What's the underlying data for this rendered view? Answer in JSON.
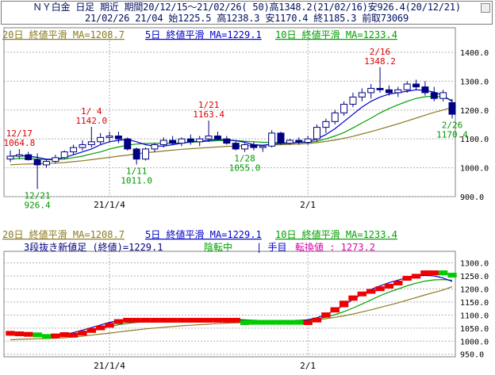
{
  "header": {
    "line1": "ＮＹ白金 日足 期近 期間20/12/15～21/02/26( 50)高1348.2(21/02/16)安926.4(20/12/21)",
    "line2": "21/02/26 21/04 始1225.5 高1238.3 安1170.4 終1185.3 前取73069"
  },
  "colors": {
    "up_body": "#ffffff",
    "down_body": "#000080",
    "candle_outline": "#000080",
    "ma20": "#8a7a20",
    "ma5": "#0000cc",
    "ma10": "#00a000",
    "high_label": "#dd0000",
    "low_label": "#009900",
    "grid": "#b0b0b0",
    "brick_up": "#ee0000",
    "brick_down": "#00cc00"
  },
  "chart_data": [
    {
      "type": "candlestick",
      "legend": [
        "20日 終値平滑 MA=1208.7",
        "5日 終値平滑 MA=1229.1",
        "10日 終値平滑 MA=1233.4"
      ],
      "x_ticks": [
        "21/1/4",
        "2/1"
      ],
      "y_ticks": [
        "1400.0",
        "1300.0",
        "1200.0",
        "1100.0",
        "1000.0",
        "900.0"
      ],
      "ylim": [
        900,
        1430
      ],
      "candles": [
        {
          "o": 1030,
          "h": 1060,
          "l": 1020,
          "c": 1040
        },
        {
          "o": 1040,
          "h": 1064.8,
          "l": 1030,
          "c": 1045
        },
        {
          "o": 1045,
          "h": 1055,
          "l": 1025,
          "c": 1028
        },
        {
          "o": 1028,
          "h": 1050,
          "l": 926.4,
          "c": 1010
        },
        {
          "o": 1010,
          "h": 1030,
          "l": 1000,
          "c": 1022
        },
        {
          "o": 1022,
          "h": 1045,
          "l": 1015,
          "c": 1035
        },
        {
          "o": 1035,
          "h": 1060,
          "l": 1030,
          "c": 1055
        },
        {
          "o": 1055,
          "h": 1080,
          "l": 1045,
          "c": 1070
        },
        {
          "o": 1070,
          "h": 1095,
          "l": 1060,
          "c": 1080
        },
        {
          "o": 1080,
          "h": 1142,
          "l": 1070,
          "c": 1090
        },
        {
          "o": 1090,
          "h": 1120,
          "l": 1080,
          "c": 1105
        },
        {
          "o": 1105,
          "h": 1125,
          "l": 1090,
          "c": 1110
        },
        {
          "o": 1110,
          "h": 1125,
          "l": 1085,
          "c": 1100
        },
        {
          "o": 1100,
          "h": 1105,
          "l": 1060,
          "c": 1065
        },
        {
          "o": 1065,
          "h": 1070,
          "l": 1011,
          "c": 1030
        },
        {
          "o": 1030,
          "h": 1070,
          "l": 1025,
          "c": 1065
        },
        {
          "o": 1065,
          "h": 1085,
          "l": 1055,
          "c": 1080
        },
        {
          "o": 1080,
          "h": 1105,
          "l": 1070,
          "c": 1095
        },
        {
          "o": 1095,
          "h": 1110,
          "l": 1080,
          "c": 1085
        },
        {
          "o": 1085,
          "h": 1105,
          "l": 1075,
          "c": 1100
        },
        {
          "o": 1100,
          "h": 1115,
          "l": 1080,
          "c": 1090
        },
        {
          "o": 1090,
          "h": 1110,
          "l": 1075,
          "c": 1100
        },
        {
          "o": 1100,
          "h": 1163.4,
          "l": 1090,
          "c": 1110
        },
        {
          "o": 1110,
          "h": 1125,
          "l": 1095,
          "c": 1100
        },
        {
          "o": 1100,
          "h": 1110,
          "l": 1080,
          "c": 1085
        },
        {
          "o": 1085,
          "h": 1095,
          "l": 1060,
          "c": 1065
        },
        {
          "o": 1065,
          "h": 1085,
          "l": 1055,
          "c": 1080
        },
        {
          "o": 1080,
          "h": 1090,
          "l": 1060,
          "c": 1070
        },
        {
          "o": 1070,
          "h": 1080,
          "l": 1055,
          "c": 1075
        },
        {
          "o": 1075,
          "h": 1130,
          "l": 1070,
          "c": 1120
        },
        {
          "o": 1120,
          "h": 1125,
          "l": 1080,
          "c": 1085
        },
        {
          "o": 1085,
          "h": 1100,
          "l": 1080,
          "c": 1095
        },
        {
          "o": 1095,
          "h": 1105,
          "l": 1080,
          "c": 1088
        },
        {
          "o": 1088,
          "h": 1110,
          "l": 1080,
          "c": 1100
        },
        {
          "o": 1100,
          "h": 1150,
          "l": 1090,
          "c": 1140
        },
        {
          "o": 1140,
          "h": 1170,
          "l": 1120,
          "c": 1160
        },
        {
          "o": 1160,
          "h": 1200,
          "l": 1150,
          "c": 1190
        },
        {
          "o": 1190,
          "h": 1230,
          "l": 1180,
          "c": 1220
        },
        {
          "o": 1220,
          "h": 1260,
          "l": 1210,
          "c": 1245
        },
        {
          "o": 1245,
          "h": 1275,
          "l": 1230,
          "c": 1260
        },
        {
          "o": 1260,
          "h": 1290,
          "l": 1240,
          "c": 1275
        },
        {
          "o": 1275,
          "h": 1348.2,
          "l": 1260,
          "c": 1270
        },
        {
          "o": 1270,
          "h": 1285,
          "l": 1250,
          "c": 1260
        },
        {
          "o": 1260,
          "h": 1280,
          "l": 1245,
          "c": 1270
        },
        {
          "o": 1270,
          "h": 1300,
          "l": 1260,
          "c": 1290
        },
        {
          "o": 1290,
          "h": 1305,
          "l": 1270,
          "c": 1280
        },
        {
          "o": 1280,
          "h": 1300,
          "l": 1250,
          "c": 1260
        },
        {
          "o": 1260,
          "h": 1280,
          "l": 1230,
          "c": 1240
        },
        {
          "o": 1240,
          "h": 1270,
          "l": 1230,
          "c": 1260
        },
        {
          "o": 1225.5,
          "h": 1238.3,
          "l": 1170.4,
          "c": 1185.3
        }
      ],
      "ma5": [
        1040,
        1042,
        1040,
        1036,
        1030,
        1030,
        1035,
        1045,
        1055,
        1065,
        1080,
        1090,
        1095,
        1098,
        1090,
        1080,
        1075,
        1075,
        1080,
        1085,
        1090,
        1092,
        1095,
        1098,
        1097,
        1094,
        1088,
        1080,
        1078,
        1082,
        1084,
        1085,
        1088,
        1090,
        1100,
        1115,
        1135,
        1160,
        1185,
        1210,
        1230,
        1245,
        1255,
        1260,
        1265,
        1270,
        1268,
        1262,
        1250,
        1229.1
      ],
      "ma10": [
        1030,
        1032,
        1032,
        1030,
        1028,
        1028,
        1030,
        1035,
        1040,
        1048,
        1055,
        1065,
        1072,
        1078,
        1082,
        1084,
        1085,
        1085,
        1085,
        1086,
        1088,
        1090,
        1092,
        1094,
        1095,
        1094,
        1092,
        1090,
        1088,
        1088,
        1087,
        1086,
        1087,
        1088,
        1092,
        1100,
        1110,
        1122,
        1138,
        1155,
        1172,
        1190,
        1205,
        1218,
        1230,
        1240,
        1246,
        1248,
        1245,
        1233.4
      ],
      "ma20": [
        1010,
        1012,
        1013,
        1014,
        1015,
        1016,
        1018,
        1021,
        1024,
        1028,
        1032,
        1036,
        1040,
        1044,
        1048,
        1052,
        1055,
        1058,
        1061,
        1064,
        1066,
        1068,
        1070,
        1072,
        1074,
        1075,
        1076,
        1077,
        1078,
        1079,
        1080,
        1081,
        1082,
        1084,
        1087,
        1091,
        1096,
        1102,
        1109,
        1117,
        1125,
        1134,
        1143,
        1152,
        1162,
        1172,
        1182,
        1192,
        1200,
        1208.7
      ],
      "annotations": [
        {
          "index": 1,
          "date": "12/17",
          "value": "1064.8",
          "kind": "high"
        },
        {
          "index": 3,
          "date": "12/21",
          "value": "926.4",
          "kind": "low"
        },
        {
          "index": 9,
          "date": "1/ 4",
          "value": "1142.0",
          "kind": "high"
        },
        {
          "index": 14,
          "date": "1/11",
          "value": "1011.0",
          "kind": "low"
        },
        {
          "index": 22,
          "date": "1/21",
          "value": "1163.4",
          "kind": "high"
        },
        {
          "index": 26,
          "date": "1/28",
          "value": "1055.0",
          "kind": "low"
        },
        {
          "index": 41,
          "date": "2/16",
          "value": "1348.2",
          "kind": "high"
        },
        {
          "index": 49,
          "date": "2/26",
          "value": "1170.4",
          "kind": "low"
        }
      ]
    },
    {
      "type": "three-line-break",
      "legend": [
        "20日 終値平滑 MA=1208.7",
        "5日 終値平滑 MA=1229.1",
        "10日 終値平滑 MA=1233.4"
      ],
      "subtitle_parts": [
        "3段抜き新値足 (終値)=1229.1",
        "陰転中",
        "| 手目",
        "転換値 : 1273.2"
      ],
      "x_ticks": [
        "21/1/4",
        "2/1"
      ],
      "y_ticks": [
        "1300.0",
        "1250.0",
        "1200.0",
        "1150.0",
        "1100.0",
        "1050.0",
        "1000.0",
        "950.0"
      ],
      "ylim": [
        940,
        1320
      ],
      "line_level": [
        1030,
        1028,
        1026,
        1024,
        1018,
        1020,
        1025,
        1032,
        1040,
        1050,
        1060,
        1070,
        1075,
        1080,
        1080,
        1080,
        1080,
        1080,
        1080,
        1080,
        1080,
        1080,
        1080,
        1080,
        1080,
        1080,
        1072,
        1072,
        1072,
        1072,
        1072,
        1072,
        1072,
        1080,
        1090,
        1110,
        1130,
        1155,
        1175,
        1190,
        1200,
        1210,
        1220,
        1232,
        1250,
        1258,
        1262,
        1262,
        1262,
        1250
      ],
      "ma_blue": [
        1028,
        1030,
        1030,
        1027,
        1022,
        1020,
        1025,
        1033,
        1042,
        1052,
        1062,
        1072,
        1078,
        1080,
        1078,
        1075,
        1074,
        1075,
        1078,
        1080,
        1082,
        1083,
        1084,
        1085,
        1085,
        1083,
        1079,
        1075,
        1074,
        1075,
        1076,
        1077,
        1079,
        1082,
        1090,
        1102,
        1118,
        1138,
        1160,
        1180,
        1198,
        1212,
        1224,
        1234,
        1244,
        1250,
        1252,
        1250,
        1242,
        1229.1
      ],
      "ma_green": [
        1022,
        1024,
        1025,
        1024,
        1022,
        1021,
        1023,
        1027,
        1033,
        1040,
        1048,
        1056,
        1063,
        1068,
        1072,
        1074,
        1075,
        1076,
        1077,
        1078,
        1079,
        1080,
        1081,
        1082,
        1083,
        1083,
        1082,
        1080,
        1079,
        1079,
        1079,
        1079,
        1080,
        1081,
        1085,
        1092,
        1101,
        1113,
        1127,
        1142,
        1158,
        1174,
        1188,
        1200,
        1212,
        1222,
        1230,
        1235,
        1236,
        1233.4
      ],
      "ma_olive": [
        1005,
        1007,
        1008,
        1009,
        1010,
        1011,
        1013,
        1016,
        1019,
        1023,
        1027,
        1031,
        1035,
        1039,
        1043,
        1047,
        1050,
        1053,
        1056,
        1059,
        1061,
        1063,
        1065,
        1067,
        1069,
        1070,
        1071,
        1072,
        1073,
        1074,
        1075,
        1076,
        1077,
        1079,
        1082,
        1086,
        1091,
        1097,
        1104,
        1112,
        1120,
        1129,
        1138,
        1147,
        1157,
        1167,
        1177,
        1187,
        1196,
        1208.7
      ],
      "bricks": [
        {
          "from": 0,
          "to": 3,
          "dir": "up"
        },
        {
          "from": 3,
          "to": 5,
          "dir": "down"
        },
        {
          "from": 5,
          "to": 26,
          "dir": "up"
        },
        {
          "from": 26,
          "to": 33,
          "dir": "down"
        },
        {
          "from": 33,
          "to": 48,
          "dir": "up"
        },
        {
          "from": 48,
          "to": 50,
          "dir": "down"
        }
      ]
    }
  ]
}
